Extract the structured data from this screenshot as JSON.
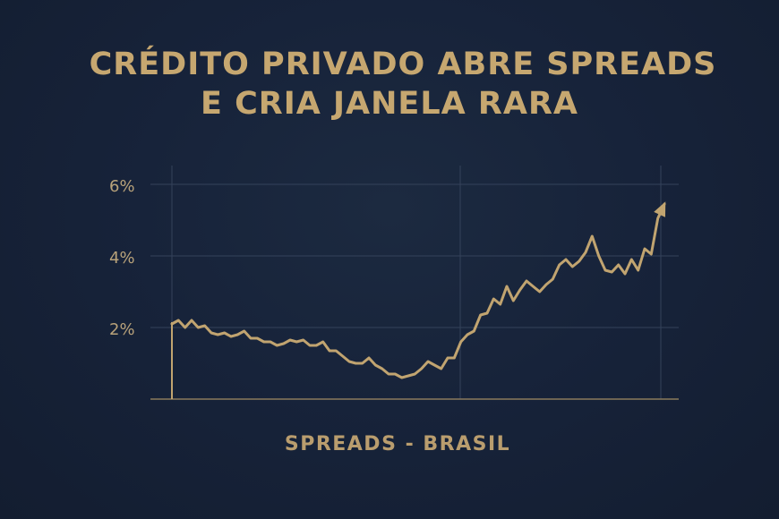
{
  "title_line1": "CRÉDITO PRIVADO ABRE SPREADS",
  "title_line2": "E CRIA JANELA RARA",
  "caption": "SPREADS - BRASIL",
  "colors": {
    "background": "#17233a",
    "accent": "#c6a770",
    "line": "#c1a470",
    "grid": "#34425a",
    "axis": "#8a7a5c",
    "tick_text": "#b8a27a"
  },
  "chart_data": {
    "type": "line",
    "title": "CRÉDITO PRIVADO ABRE SPREADS E CRIA JANELA RARA",
    "xlabel": "SPREADS - BRASIL",
    "ylabel": "",
    "ylim": [
      0,
      6.5
    ],
    "yticks": [
      2,
      4,
      6
    ],
    "ytick_labels": [
      "2%",
      "4%",
      "6%"
    ],
    "grid": true,
    "legend": "none",
    "series": [
      {
        "values": [
          2.1,
          2.2,
          2.0,
          2.2,
          2.0,
          2.05,
          1.85,
          1.8,
          1.85,
          1.75,
          1.8,
          1.9,
          1.7,
          1.7,
          1.6,
          1.6,
          1.5,
          1.55,
          1.65,
          1.6,
          1.65,
          1.5,
          1.5,
          1.6,
          1.35,
          1.35,
          1.2,
          1.05,
          1.0,
          1.0,
          1.15,
          0.95,
          0.85,
          0.7,
          0.7,
          0.6,
          0.65,
          0.7,
          0.85,
          1.05,
          0.95,
          0.85,
          1.15,
          1.15,
          1.6,
          1.8,
          1.9,
          2.35,
          2.4,
          2.8,
          2.65,
          3.15,
          2.75,
          3.05,
          3.3,
          3.15,
          3.0,
          3.2,
          3.35,
          3.75,
          3.9,
          3.7,
          3.85,
          4.1,
          4.55,
          4.0,
          3.6,
          3.55,
          3.75,
          3.5,
          3.9,
          3.6,
          4.2,
          4.05,
          5.05,
          5.45
        ],
        "end_arrow": true
      }
    ]
  }
}
